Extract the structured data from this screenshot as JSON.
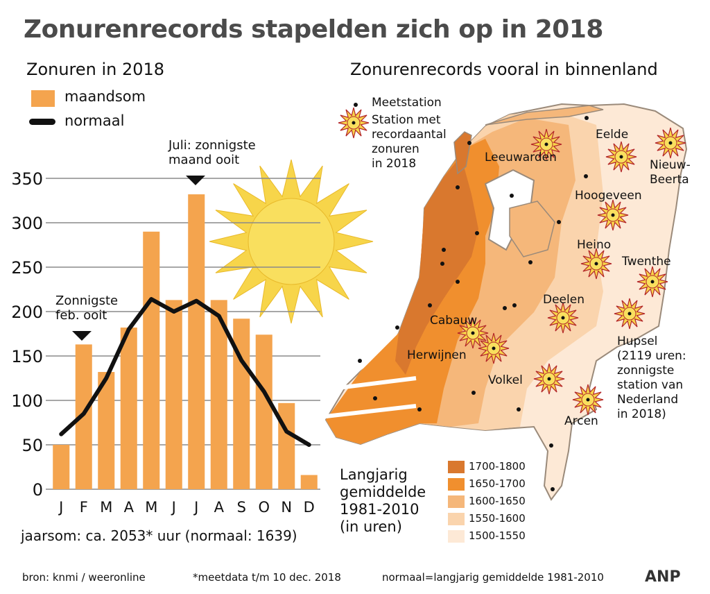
{
  "header": {
    "title": "Zonurenrecords stapelden zich op in 2018",
    "left_subtitle": "Zonuren in 2018",
    "right_subtitle": "Zonurenrecords vooral in binnenland"
  },
  "chart_legend": {
    "bar_label": "maandsom",
    "line_label": "normaal"
  },
  "colors": {
    "bar": "#f4a44e",
    "line": "#111111",
    "sun": "#f7d54a",
    "band_1700_1800": "#d9782e",
    "band_1650_1700": "#f08f2e",
    "band_1600_1650": "#f5b77a",
    "band_1550_1600": "#fad4ad",
    "band_1500_1550": "#fde9d6"
  },
  "chart_data": {
    "type": "bar",
    "categories": [
      "J",
      "F",
      "M",
      "A",
      "M",
      "J",
      "J",
      "A",
      "S",
      "O",
      "N",
      "D"
    ],
    "series": [
      {
        "name": "maandsom",
        "values": [
          50,
          163,
          132,
          182,
          290,
          213,
          332,
          213,
          192,
          174,
          97,
          16
        ]
      },
      {
        "name": "normaal",
        "values": [
          62,
          85,
          125,
          180,
          214,
          200,
          212,
          195,
          145,
          110,
          65,
          50
        ]
      }
    ],
    "ylim": [
      0,
      350
    ],
    "yticks": [
      "0",
      "50",
      "100",
      "150",
      "200",
      "250",
      "300",
      "350"
    ],
    "grid": true
  },
  "annotations": {
    "feb": "Zonnigste\nfeb. ooit",
    "jul": "Juli: zonnigste\nmaand ooit"
  },
  "annual_total": "jaarsom: ca. 2053* uur (normaal: 1639)",
  "map": {
    "legend_station": "Meetstation",
    "legend_record": "Station met\nrecordaantal\nzonuren\nin 2018",
    "stations": [
      "Leeuwarden",
      "Eelde",
      "Nieuw-\nBeerta",
      "Hoogeveen",
      "Heino",
      "Twenthe",
      "Deelen",
      "Cabauw",
      "Herwijnen",
      "Volkel",
      "Arcen"
    ],
    "hupsel_note": "Hupsel\n(2119 uren:\nzonnigste\nstation van\nNederland\nin 2018)",
    "key_title": "Langjarig\ngemiddelde\n1981-2010\n(in uren)",
    "key_ranges": [
      "1700-1800",
      "1650-1700",
      "1600-1650",
      "1550-1600",
      "1500-1550"
    ]
  },
  "footer": {
    "source": "bron: knmi / weeronline",
    "measure_note": "*meetdata t/m 10 dec. 2018",
    "normal_note": "normaal=langjarig gemiddelde 1981-2010",
    "brand": "ANP"
  }
}
